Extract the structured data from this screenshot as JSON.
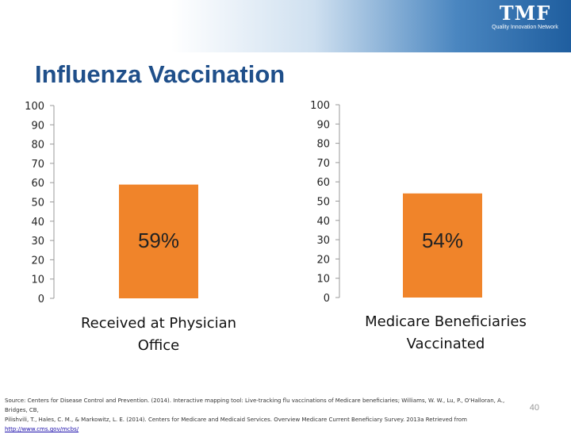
{
  "logo": {
    "main": "TMF",
    "sub": "Quality Innovation Network"
  },
  "title": "Influenza Vaccination",
  "colors": {
    "bar": "#f0842a",
    "axis": "#999999",
    "title": "#1f4f8a"
  },
  "chart_data": [
    {
      "type": "bar",
      "categories": [
        "Received at Physician Office"
      ],
      "values": [
        59
      ],
      "data_labels": [
        "59%"
      ],
      "yticks": [
        "100",
        "90",
        "80",
        "70",
        "60",
        "50",
        "40",
        "30",
        "20",
        "10",
        "0"
      ],
      "ylim": [
        0,
        100
      ],
      "grid": false,
      "category_label_lines": [
        "Received at Physician",
        "Office"
      ]
    },
    {
      "type": "bar",
      "categories": [
        "Medicare Beneficiaries Vaccinated"
      ],
      "values": [
        54
      ],
      "data_labels": [
        "54%"
      ],
      "yticks": [
        "100",
        "90",
        "80",
        "70",
        "60",
        "50",
        "40",
        "30",
        "20",
        "10",
        "0"
      ],
      "ylim": [
        0,
        100
      ],
      "grid": false,
      "category_label_lines": [
        "Medicare Beneficiaries",
        "Vaccinated"
      ]
    }
  ],
  "source": {
    "line1": "Source: Centers for Disease Control and Prevention. (2014). Interactive mapping tool: Live-tracking flu vaccinations of Medicare beneficiaries; Williams, W. W., Lu, P., O'Halloran, A., Bridges, CB,",
    "line2": "Pilishvili, T., Hales, C. M., & Markowitz, L. E. (2014). Centers for Medicare and Medicaid Services. Overview Medicare Current Beneficiary Survey. 2013a Retrieved from ",
    "link": "http://www.cms.gov/mcbs/"
  },
  "page_number": "40"
}
